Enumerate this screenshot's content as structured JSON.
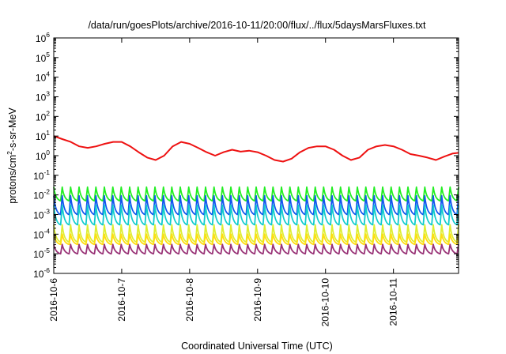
{
  "chart_data": {
    "type": "line",
    "title": "/data/run/goesPlots/archive/2016-10-11/20:00/flux/../flux/5daysMarsFluxes.txt",
    "xlabel": "Coordinated Universal Time (UTC)",
    "ylabel": {
      "pre": "protons/cm",
      "sup": "2",
      "post": "-s-sr-MeV"
    },
    "xlim": [
      "2016-10-06",
      "2016-10-11 23:00"
    ],
    "ylim": [
      1e-06,
      1000000.0
    ],
    "yscale": "log",
    "grid": false,
    "x_tick_labels": [
      "2016-10-6",
      "2016-10-7",
      "2016-10-8",
      "2016-10-9",
      "2016-10-10",
      "2016-10-11"
    ],
    "y_tick_labels": [
      {
        "base": "10",
        "exp": "-6"
      },
      {
        "base": "10",
        "exp": "-5"
      },
      {
        "base": "10",
        "exp": "-4"
      },
      {
        "base": "10",
        "exp": "-3"
      },
      {
        "base": "10",
        "exp": "-2"
      },
      {
        "base": "10",
        "exp": "-1"
      },
      {
        "base": "10",
        "exp": "0"
      },
      {
        "base": "10",
        "exp": "1"
      },
      {
        "base": "10",
        "exp": "2"
      },
      {
        "base": "10",
        "exp": "3"
      },
      {
        "base": "10",
        "exp": "4"
      },
      {
        "base": "10",
        "exp": "5"
      },
      {
        "base": "10",
        "exp": "6"
      }
    ],
    "sawtooth_cycles": 48,
    "series": [
      {
        "color": "#ee1111",
        "x": [
          "2016-10-06 00:00",
          "2016-10-06 03:00",
          "2016-10-06 06:00",
          "2016-10-06 09:00",
          "2016-10-06 12:00",
          "2016-10-06 15:00",
          "2016-10-06 18:00",
          "2016-10-06 21:00",
          "2016-10-07 00:00",
          "2016-10-07 03:00",
          "2016-10-07 06:00",
          "2016-10-07 09:00",
          "2016-10-07 12:00",
          "2016-10-07 15:00",
          "2016-10-07 18:00",
          "2016-10-07 21:00",
          "2016-10-08 00:00",
          "2016-10-08 03:00",
          "2016-10-08 06:00",
          "2016-10-08 09:00",
          "2016-10-08 12:00",
          "2016-10-08 15:00",
          "2016-10-08 18:00",
          "2016-10-08 21:00",
          "2016-10-09 00:00",
          "2016-10-09 03:00",
          "2016-10-09 06:00",
          "2016-10-09 09:00",
          "2016-10-09 12:00",
          "2016-10-09 15:00",
          "2016-10-09 18:00",
          "2016-10-09 21:00",
          "2016-10-10 00:00",
          "2016-10-10 03:00",
          "2016-10-10 06:00",
          "2016-10-10 09:00",
          "2016-10-10 12:00",
          "2016-10-10 15:00",
          "2016-10-10 18:00",
          "2016-10-10 21:00",
          "2016-10-11 00:00",
          "2016-10-11 03:00",
          "2016-10-11 06:00",
          "2016-10-11 09:00",
          "2016-10-11 12:00",
          "2016-10-11 15:00",
          "2016-10-11 18:00",
          "2016-10-11 21:00",
          "2016-10-11 23:00"
        ],
        "y": [
          10,
          7,
          5,
          3,
          2.5,
          3,
          4,
          5,
          5,
          3,
          1.5,
          0.8,
          0.6,
          1,
          3,
          5,
          4,
          2.5,
          1.5,
          1,
          1.5,
          2,
          1.6,
          1.8,
          1.5,
          1,
          0.6,
          0.5,
          0.7,
          1.5,
          2.5,
          3,
          3,
          2,
          1,
          0.6,
          0.8,
          2,
          3,
          3.5,
          3,
          2,
          1.2,
          1,
          0.8,
          0.6,
          0.9,
          1.3,
          1.4
        ]
      },
      {
        "color": "#22ee22",
        "peak": 0.025,
        "trough": 0.005
      },
      {
        "color": "#1155ee",
        "peak": 0.009,
        "trough": 0.001
      },
      {
        "color": "#11cccc",
        "peak": 0.003,
        "trough": 0.0003
      },
      {
        "color": "#ddee33",
        "peak": 0.0003,
        "trough": 4e-05
      },
      {
        "color": "#ffdd11",
        "peak": 0.0001,
        "trough": 3e-05
      },
      {
        "color": "#993377",
        "peak": 3e-05,
        "trough": 1e-05
      }
    ]
  }
}
